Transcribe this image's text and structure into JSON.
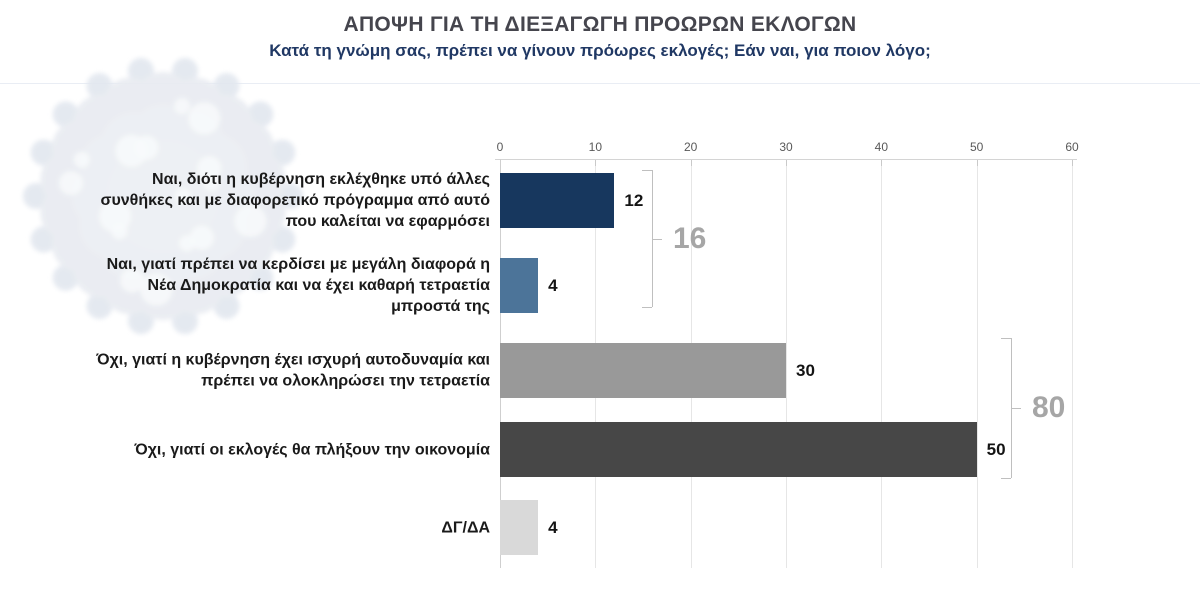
{
  "header": {
    "title": "ΑΠΟΨΗ ΓΙΑ ΤΗ ΔΙΕΞΑΓΩΓΗ ΠΡΟΩΡΩΝ ΕΚΛΟΓΩΝ",
    "subtitle": "Κατά τη γνώμη σας, πρέπει να γίνουν πρόωρες εκλογές; Εάν ναι, για ποιον λόγο;"
  },
  "chart_data": {
    "type": "bar",
    "orientation": "horizontal",
    "title": "ΑΠΟΨΗ ΓΙΑ ΤΗ ΔΙΕΞΑΓΩΓΗ ΠΡΟΩΡΩΝ ΕΚΛΟΓΩΝ",
    "subtitle": "Κατά τη γνώμη σας, πρέπει να γίνουν πρόωρες εκλογές; Εάν ναι, για ποιον λόγο;",
    "categories": [
      "Ναι, διότι η κυβέρνηση εκλέχθηκε υπό άλλες συνθήκες και με διαφορετικό πρόγραμμα από αυτό που καλείται να εφαρμόσει",
      "Ναι, γιατί πρέπει να κερδίσει με μεγάλη διαφορά η Νέα Δημοκρατία και να έχει καθαρή τετραετία μπροστά της",
      "Όχι, γιατί η κυβέρνηση έχει ισχυρή αυτοδυναμία και πρέπει να ολοκληρώσει την τετραετία",
      "Όχι, γιατί οι εκλογές θα πλήξουν την οικονομία",
      "ΔΓ/ΔΑ"
    ],
    "values": [
      12,
      4,
      30,
      50,
      4
    ],
    "bar_colors": [
      "#17375E",
      "#4C7499",
      "#999999",
      "#474747",
      "#D9D9D9"
    ],
    "xlim": [
      0,
      60
    ],
    "xticks": [
      0,
      10,
      20,
      30,
      40,
      50,
      60
    ],
    "grid": true,
    "legend": false,
    "annotations": [
      {
        "label": "16",
        "spans_categories": [
          0,
          1
        ]
      },
      {
        "label": "80",
        "spans_categories": [
          2,
          3
        ]
      }
    ]
  },
  "colors": {
    "title_text": "#45454D",
    "subtitle_text": "#203864",
    "axis_text": "#595959",
    "value_text": "#141414",
    "category_text": "#1A1A1A",
    "bracket": "#BFBFBF",
    "bracket_label": "#A6A6A6",
    "gridline": "#E6E6E6",
    "watermark_tint": "#E8EBF1"
  }
}
